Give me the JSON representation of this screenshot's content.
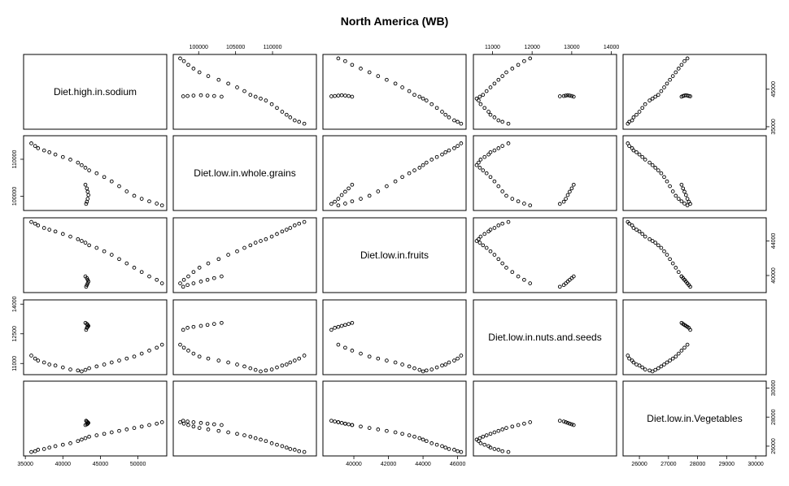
{
  "chart_data": {
    "type": "scatter-matrix",
    "title": "North America (WB)",
    "variables": [
      "Diet.high.in.sodium",
      "Diet.low.in.whole.grains",
      "Diet.low.in.fruits",
      "Diet.low.in.nuts.and.seeds",
      "Diet.low.in.Vegetables"
    ],
    "ranges": [
      [
        35200,
        53400
      ],
      [
        97000,
        115500
      ],
      [
        38400,
        46300
      ],
      [
        10600,
        14050
      ],
      [
        25550,
        30250
      ]
    ],
    "axis_ticks": [
      [
        35000,
        40000,
        45000,
        50000
      ],
      [
        100000,
        105000,
        110000
      ],
      [
        40000,
        42000,
        44000,
        46000
      ],
      [
        11000,
        12000,
        13000,
        14000
      ],
      [
        26000,
        27000,
        28000,
        29000,
        30000
      ]
    ],
    "axis_ticks_right_row1": [
      35000,
      45000
    ],
    "axis_ticks_right_row3": [
      40000,
      44000
    ],
    "axis_ticks_left_row2": [
      100000,
      110000
    ],
    "axis_ticks_left_row4": [
      11000,
      12500,
      14000
    ],
    "axis_ticks_right_row5": [
      26000,
      28000,
      30000
    ],
    "observations": [
      [
        35800,
        114300,
        46200,
        11400,
        25600
      ],
      [
        36300,
        113600,
        46000,
        11250,
        25650
      ],
      [
        36700,
        113000,
        45800,
        11150,
        25750
      ],
      [
        37500,
        112400,
        45500,
        11050,
        25800
      ],
      [
        38200,
        111900,
        45300,
        10950,
        25900
      ],
      [
        39000,
        111300,
        45100,
        10900,
        26000
      ],
      [
        40000,
        110600,
        44800,
        10800,
        26100
      ],
      [
        41000,
        109900,
        44500,
        10700,
        26200
      ],
      [
        42000,
        109100,
        44200,
        10650,
        26350
      ],
      [
        42500,
        108400,
        44000,
        10600,
        26450
      ],
      [
        43000,
        107700,
        43800,
        10680,
        26550
      ],
      [
        43500,
        107000,
        43500,
        10760,
        26650
      ],
      [
        44500,
        106200,
        43200,
        10850,
        26750
      ],
      [
        45500,
        105200,
        42800,
        10950,
        26850
      ],
      [
        46500,
        104000,
        42400,
        11050,
        26950
      ],
      [
        47500,
        102700,
        41900,
        11150,
        27050
      ],
      [
        48500,
        101300,
        41400,
        11250,
        27150
      ],
      [
        49500,
        100100,
        40900,
        11350,
        27250
      ],
      [
        50500,
        99300,
        40400,
        11500,
        27350
      ],
      [
        51500,
        98600,
        39900,
        11650,
        27450
      ],
      [
        52500,
        98000,
        39500,
        11800,
        27550
      ],
      [
        53200,
        97500,
        39100,
        11950,
        27650
      ],
      [
        43100,
        97900,
        38700,
        12700,
        27750
      ],
      [
        43200,
        98500,
        38900,
        12800,
        27700
      ],
      [
        43300,
        99300,
        39100,
        12850,
        27650
      ],
      [
        43400,
        100300,
        39300,
        12900,
        27600
      ],
      [
        43300,
        101200,
        39500,
        12950,
        27550
      ],
      [
        43200,
        102100,
        39700,
        13000,
        27500
      ],
      [
        43000,
        103100,
        39900,
        13050,
        27450
      ]
    ]
  }
}
